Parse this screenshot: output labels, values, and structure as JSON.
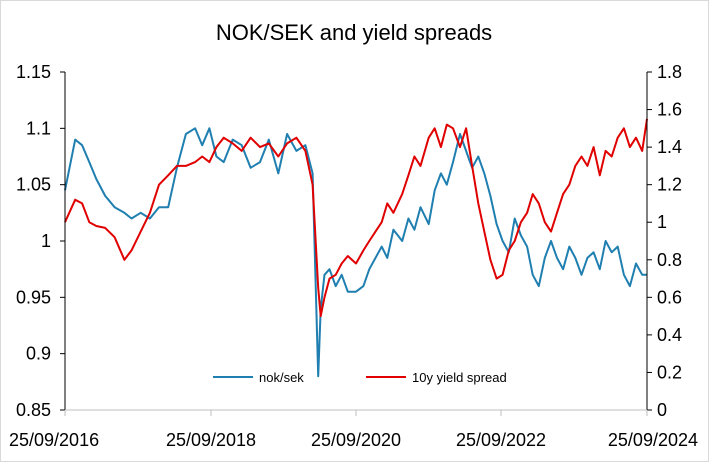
{
  "chart_data": {
    "type": "line",
    "title": "NOK/SEK and yield spreads",
    "xlabel": "",
    "ylabel": "",
    "x_ticks": [
      "25/09/2016",
      "25/09/2018",
      "25/09/2020",
      "25/09/2022",
      "25/09/2024"
    ],
    "xlim": [
      "2016-09-25",
      "2024-09-25"
    ],
    "y_left": {
      "ticks": [
        "0.85",
        "0.9",
        "0.95",
        "1",
        "1.05",
        "1.1",
        "1.15"
      ],
      "ylim": [
        0.85,
        1.15
      ]
    },
    "y_right": {
      "ticks": [
        "0",
        "0.2",
        "0.4",
        "0.6",
        "0.8",
        "1",
        "1.2",
        "1.4",
        "1.6",
        "1.8"
      ],
      "ylim": [
        0,
        1.8
      ]
    },
    "grid": false,
    "legend_position": "bottom-center",
    "series": [
      {
        "name": "nok/sek",
        "axis": "left",
        "color": "#1f7fb0",
        "x": [
          "2016-09-25",
          "2016-11-15",
          "2016-12-20",
          "2017-01-25",
          "2017-03-01",
          "2017-04-15",
          "2017-06-01",
          "2017-07-20",
          "2017-08-25",
          "2017-10-10",
          "2017-11-25",
          "2018-01-10",
          "2018-02-25",
          "2018-04-10",
          "2018-05-25",
          "2018-07-10",
          "2018-08-15",
          "2018-09-20",
          "2018-10-25",
          "2018-12-01",
          "2019-01-15",
          "2019-03-01",
          "2019-04-15",
          "2019-06-01",
          "2019-07-15",
          "2019-09-01",
          "2019-10-15",
          "2019-12-01",
          "2020-01-15",
          "2020-02-20",
          "2020-03-19",
          "2020-04-01",
          "2020-04-20",
          "2020-05-15",
          "2020-06-15",
          "2020-07-15",
          "2020-08-15",
          "2020-09-25",
          "2020-11-01",
          "2020-12-01",
          "2021-01-01",
          "2021-02-01",
          "2021-03-01",
          "2021-04-01",
          "2021-05-15",
          "2021-06-15",
          "2021-07-15",
          "2021-08-15",
          "2021-09-25",
          "2021-10-25",
          "2021-11-25",
          "2021-12-25",
          "2022-01-25",
          "2022-03-01",
          "2022-04-01",
          "2022-05-01",
          "2022-06-01",
          "2022-07-01",
          "2022-08-01",
          "2022-09-01",
          "2022-10-01",
          "2022-11-01",
          "2022-12-01",
          "2023-01-01",
          "2023-02-01",
          "2023-03-01",
          "2023-04-01",
          "2023-05-01",
          "2023-06-01",
          "2023-07-01",
          "2023-08-01",
          "2023-09-01",
          "2023-10-01",
          "2023-11-01",
          "2023-12-01",
          "2024-01-01",
          "2024-02-01",
          "2024-03-01",
          "2024-04-01",
          "2024-05-01",
          "2024-06-01",
          "2024-07-01",
          "2024-08-01",
          "2024-09-01",
          "2024-09-25"
        ],
        "values": [
          1.045,
          1.09,
          1.085,
          1.07,
          1.055,
          1.04,
          1.03,
          1.025,
          1.02,
          1.025,
          1.02,
          1.03,
          1.03,
          1.065,
          1.095,
          1.1,
          1.085,
          1.1,
          1.075,
          1.07,
          1.09,
          1.085,
          1.065,
          1.07,
          1.09,
          1.06,
          1.095,
          1.08,
          1.085,
          1.06,
          0.88,
          0.94,
          0.97,
          0.975,
          0.96,
          0.97,
          0.955,
          0.955,
          0.96,
          0.975,
          0.985,
          0.995,
          0.985,
          1.01,
          1.0,
          1.02,
          1.01,
          1.03,
          1.015,
          1.045,
          1.06,
          1.05,
          1.07,
          1.095,
          1.08,
          1.065,
          1.075,
          1.06,
          1.04,
          1.015,
          1.0,
          0.99,
          1.02,
          1.005,
          0.995,
          0.97,
          0.96,
          0.985,
          1.0,
          0.985,
          0.975,
          0.995,
          0.985,
          0.97,
          0.985,
          0.99,
          0.975,
          1.0,
          0.99,
          0.995,
          0.97,
          0.96,
          0.98,
          0.97,
          0.97
        ]
      },
      {
        "name": "10y yield spread",
        "axis": "right",
        "color": "#e00000",
        "x": [
          "2016-09-25",
          "2016-11-15",
          "2016-12-20",
          "2017-01-25",
          "2017-03-01",
          "2017-04-15",
          "2017-06-01",
          "2017-07-20",
          "2017-08-25",
          "2017-10-10",
          "2017-11-25",
          "2018-01-10",
          "2018-02-25",
          "2018-04-10",
          "2018-05-25",
          "2018-07-10",
          "2018-08-15",
          "2018-09-20",
          "2018-10-25",
          "2018-12-01",
          "2019-01-15",
          "2019-03-01",
          "2019-04-15",
          "2019-06-01",
          "2019-07-15",
          "2019-09-01",
          "2019-10-15",
          "2019-12-01",
          "2020-01-15",
          "2020-02-20",
          "2020-03-19",
          "2020-04-01",
          "2020-04-20",
          "2020-05-15",
          "2020-06-15",
          "2020-07-15",
          "2020-08-15",
          "2020-09-25",
          "2020-11-01",
          "2020-12-01",
          "2021-01-01",
          "2021-02-01",
          "2021-03-01",
          "2021-04-01",
          "2021-05-15",
          "2021-06-15",
          "2021-07-15",
          "2021-08-15",
          "2021-09-25",
          "2021-10-25",
          "2021-11-25",
          "2021-12-25",
          "2022-01-25",
          "2022-03-01",
          "2022-04-01",
          "2022-05-01",
          "2022-06-01",
          "2022-07-01",
          "2022-08-01",
          "2022-09-01",
          "2022-10-01",
          "2022-11-01",
          "2022-12-01",
          "2023-01-01",
          "2023-02-01",
          "2023-03-01",
          "2023-04-01",
          "2023-05-01",
          "2023-06-01",
          "2023-07-01",
          "2023-08-01",
          "2023-09-01",
          "2023-10-01",
          "2023-11-01",
          "2023-12-01",
          "2024-01-01",
          "2024-02-01",
          "2024-03-01",
          "2024-04-01",
          "2024-05-01",
          "2024-06-01",
          "2024-07-01",
          "2024-08-01",
          "2024-09-01",
          "2024-09-25"
        ],
        "values": [
          1.0,
          1.12,
          1.1,
          1.0,
          0.98,
          0.97,
          0.92,
          0.8,
          0.85,
          0.95,
          1.05,
          1.2,
          1.25,
          1.3,
          1.3,
          1.32,
          1.35,
          1.32,
          1.4,
          1.45,
          1.42,
          1.38,
          1.45,
          1.4,
          1.42,
          1.35,
          1.42,
          1.45,
          1.38,
          1.2,
          0.65,
          0.5,
          0.6,
          0.7,
          0.72,
          0.78,
          0.82,
          0.78,
          0.85,
          0.9,
          0.95,
          1.0,
          1.1,
          1.05,
          1.15,
          1.25,
          1.35,
          1.3,
          1.45,
          1.5,
          1.4,
          1.52,
          1.5,
          1.4,
          1.5,
          1.3,
          1.1,
          0.95,
          0.8,
          0.7,
          0.72,
          0.85,
          0.9,
          1.0,
          1.05,
          1.15,
          1.1,
          1.0,
          0.95,
          1.05,
          1.15,
          1.2,
          1.3,
          1.35,
          1.3,
          1.4,
          1.25,
          1.38,
          1.35,
          1.45,
          1.5,
          1.4,
          1.45,
          1.38,
          1.55
        ]
      }
    ]
  }
}
